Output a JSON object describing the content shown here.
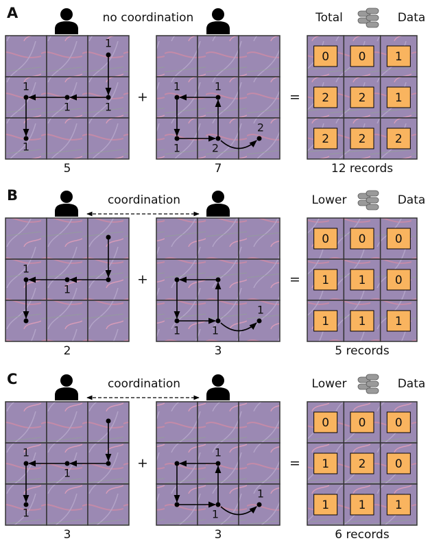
{
  "panels": [
    {
      "label": "A",
      "header": "no coordination",
      "left": {
        "labels": [
          "1",
          "1",
          "1",
          "1",
          "1"
        ],
        "count": 5
      },
      "plus": "+",
      "right": {
        "labels": [
          "1",
          "1",
          "1",
          "2",
          "2"
        ],
        "count": 7
      },
      "equals": "=",
      "result": {
        "title_left": "Total",
        "title_right": "Data",
        "cells": [
          [
            0,
            0,
            1
          ],
          [
            2,
            2,
            1
          ],
          [
            2,
            2,
            2
          ]
        ],
        "caption": "12 records"
      }
    },
    {
      "label": "B",
      "header": "coordination",
      "left": {
        "labels": [
          "1",
          "1"
        ],
        "count": 2
      },
      "plus": "+",
      "right": {
        "labels": [
          "1",
          "1",
          "1"
        ],
        "count": 3
      },
      "equals": "=",
      "result": {
        "title_left": "Lower",
        "title_right": "Data",
        "cells": [
          [
            0,
            0,
            0
          ],
          [
            1,
            1,
            0
          ],
          [
            1,
            1,
            1
          ]
        ],
        "caption": "5 records"
      }
    },
    {
      "label": "C",
      "header": "coordination",
      "left": {
        "labels": [
          "1",
          "1",
          "1"
        ],
        "count": 3
      },
      "plus": "+",
      "right": {
        "labels": [
          "1",
          "1",
          "1"
        ],
        "count": 3
      },
      "equals": "=",
      "result": {
        "title_left": "Lower",
        "title_right": "Data",
        "cells": [
          [
            0,
            0,
            0
          ],
          [
            1,
            2,
            0
          ],
          [
            1,
            1,
            1
          ]
        ],
        "caption": "6 records"
      }
    }
  ]
}
